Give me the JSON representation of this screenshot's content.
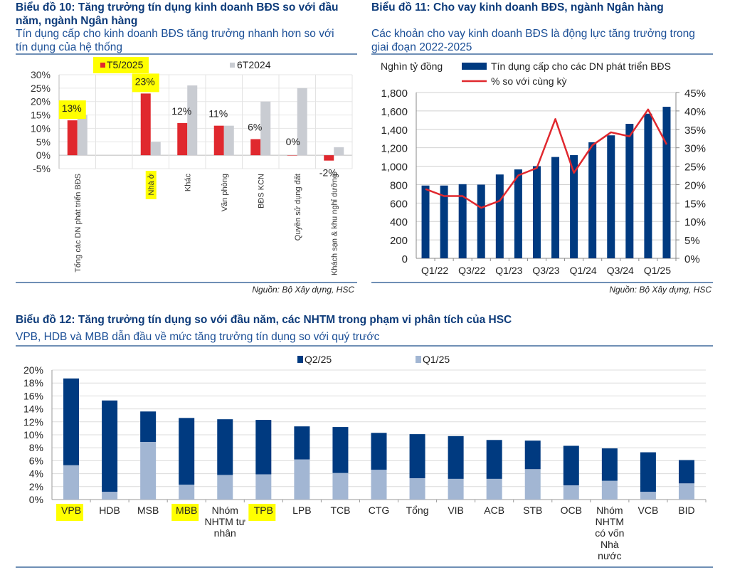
{
  "chart10": {
    "title": "Biểu đồ 10: Tăng trưởng tín dụng kinh doanh BĐS so với đầu năm, ngành Ngân hàng",
    "title_line1": "Biểu đồ 10: Tăng trưởng tín dụng kinh doanh BĐS so với đầu",
    "title_line2": "năm, ngành Ngân hàng",
    "subtitle_line1": "Tín dụng cấp cho kinh doanh BĐS tăng trưởng nhanh hơn so với",
    "subtitle_line2": "tín dụng của hệ thống",
    "source": "Nguồn: Bộ Xây dựng, HSC"
  },
  "chart11": {
    "title": "Biểu đồ 11: Cho vay kinh doanh BĐS, ngành Ngân hàng",
    "subtitle_line1": "Các khoản cho vay kinh doanh BĐS là động lực tăng trưởng trong",
    "subtitle_line2": "giai đoạn 2022-2025",
    "source": "Nguồn: Bộ Xây dựng, HSC"
  },
  "chart12": {
    "title": "Biểu đồ 12: Tăng trưởng tín dụng so với đầu năm, các NHTM trong phạm vi phân tích của HSC",
    "subtitle": "VPB, HDB và MBB dẫn đầu về mức tăng trưởng tín dụng so với quý trước"
  },
  "colors": {
    "title": "#0d3b7a",
    "red": "#e0282e",
    "light_gray": "#c9ccd2",
    "navy": "#003a80",
    "light_blue": "#a2b6d3",
    "highlight": "#ffff00",
    "rule": "#6f8fb5"
  },
  "chart_data": [
    {
      "id": "chart10",
      "type": "bar",
      "title": "Biểu đồ 10: Tăng trưởng tín dụng kinh doanh BĐS so với đầu năm, ngành Ngân hàng",
      "categories": [
        "Tổng các DN phát triển BĐS",
        "",
        "Nhà ở",
        "Khác",
        "Văn phòng",
        "BĐS KCN",
        "Quyền sử dụng đất",
        "Khách sạn & khu nghỉ dưỡng"
      ],
      "series": [
        {
          "name": "T5/2025",
          "values": [
            13,
            null,
            23,
            12,
            11,
            6,
            0,
            -2
          ],
          "labels": [
            "13%",
            "",
            "23%",
            "12%",
            "11%",
            "6%",
            "0%",
            "-2%"
          ]
        },
        {
          "name": "6T2024",
          "values": [
            15,
            null,
            5,
            26,
            11,
            20,
            25,
            3
          ]
        }
      ],
      "yticks": [
        "30%",
        "25%",
        "20%",
        "15%",
        "10%",
        "5%",
        "0%",
        "-5%"
      ],
      "ylim": [
        -5,
        30
      ],
      "legend": "top",
      "grid": true,
      "highlighted": [
        "T5/2025",
        "13%",
        "23%",
        "Nhà ở"
      ]
    },
    {
      "id": "chart11",
      "type": "bar",
      "title": "Biểu đồ 11: Cho vay kinh doanh BĐS, ngành Ngân hàng",
      "ylabel": "Nghìn tỷ đồng",
      "categories": [
        "Q1/22",
        "Q2/22",
        "Q3/22",
        "Q4/22",
        "Q1/23",
        "Q2/23",
        "Q3/23",
        "Q4/23",
        "Q1/24",
        "Q2/24",
        "Q3/24",
        "Q4/24",
        "Q1/25",
        "Q2/25"
      ],
      "xtick_labels": [
        "Q1/22",
        "Q3/22",
        "Q1/23",
        "Q3/23",
        "Q1/24",
        "Q3/24",
        "Q1/25"
      ],
      "series": [
        {
          "name": "Tín dụng cấp cho các DN phát triển BĐS",
          "type": "bar",
          "axis": "left",
          "values": [
            790,
            790,
            805,
            800,
            910,
            965,
            1000,
            1100,
            1120,
            1260,
            1335,
            1460,
            1570,
            1645
          ]
        },
        {
          "name": "% so với cùng kỳ",
          "type": "line",
          "axis": "right",
          "values": [
            18.8,
            16.9,
            16.9,
            13.7,
            15.6,
            22.5,
            24.5,
            37.8,
            23.2,
            30.7,
            34.2,
            33.1,
            40.4,
            30.9
          ]
        }
      ],
      "yticks_left": [
        "1,800",
        "1,600",
        "1,400",
        "1,200",
        "1,000",
        "800",
        "600",
        "400",
        "200",
        "0"
      ],
      "yticks_right": [
        "45%",
        "40%",
        "35%",
        "30%",
        "25%",
        "20%",
        "15%",
        "10%",
        "5%",
        "0%"
      ],
      "ylim_left": [
        0,
        1800
      ],
      "ylim_right": [
        0,
        45
      ],
      "legend": "top",
      "grid": true
    },
    {
      "id": "chart12",
      "type": "bar",
      "stacked": true,
      "title": "Biểu đồ 12: Tăng trưởng tín dụng so với đầu năm, các NHTM trong phạm vi phân tích của HSC",
      "categories": [
        "VPB",
        "HDB",
        "MSB",
        "MBB",
        "Nhóm NHTM tư nhân",
        "TPB",
        "LPB",
        "TCB",
        "CTG",
        "Tổng",
        "VIB",
        "ACB",
        "STB",
        "OCB",
        "Nhóm NHTM có vốn Nhà nước",
        "VCB",
        "BID"
      ],
      "category_lines": [
        [
          "VPB"
        ],
        [
          "HDB"
        ],
        [
          "MSB"
        ],
        [
          "MBB"
        ],
        [
          "Nhóm",
          "NHTM tư",
          "nhân"
        ],
        [
          "TPB"
        ],
        [
          "LPB"
        ],
        [
          "TCB"
        ],
        [
          "CTG"
        ],
        [
          "Tổng"
        ],
        [
          "VIB"
        ],
        [
          "ACB"
        ],
        [
          "STB"
        ],
        [
          "OCB"
        ],
        [
          "Nhóm",
          "NHTM",
          "có vốn",
          "Nhà",
          "nước"
        ],
        [
          "VCB"
        ],
        [
          "BID"
        ]
      ],
      "series": [
        {
          "name": "Q1/25",
          "values": [
            5.3,
            1.2,
            8.9,
            2.3,
            3.8,
            3.9,
            6.2,
            4.1,
            4.6,
            3.3,
            3.2,
            3.2,
            4.7,
            2.2,
            2.9,
            1.2,
            2.5
          ]
        },
        {
          "name": "Q2/25",
          "values": [
            13.4,
            14.1,
            4.7,
            10.3,
            8.6,
            8.4,
            5.1,
            7.1,
            5.7,
            6.8,
            6.6,
            6.0,
            4.4,
            6.1,
            5.0,
            6.1,
            3.6
          ]
        }
      ],
      "totals": [
        18.7,
        15.3,
        13.6,
        12.6,
        12.4,
        12.3,
        11.3,
        11.2,
        10.3,
        10.1,
        9.8,
        9.2,
        9.1,
        8.3,
        7.9,
        7.3,
        6.1
      ],
      "yticks": [
        "20%",
        "18%",
        "16%",
        "14%",
        "12%",
        "10%",
        "8%",
        "6%",
        "4%",
        "2%",
        "0%"
      ],
      "ylim": [
        0,
        20
      ],
      "legend": "top",
      "grid": true,
      "highlighted": [
        "VPB",
        "MBB",
        "TPB"
      ]
    }
  ]
}
